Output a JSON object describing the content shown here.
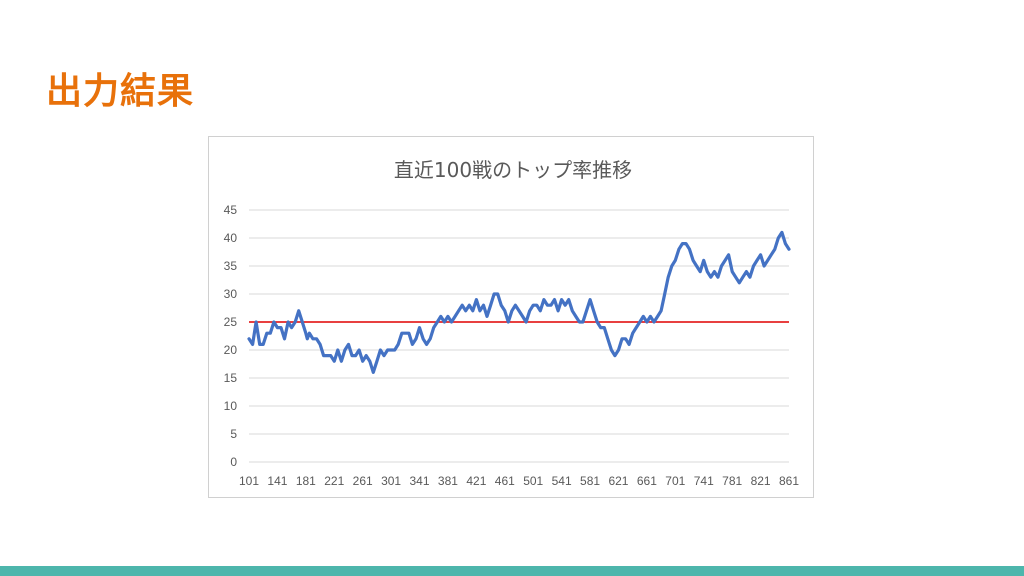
{
  "slide": {
    "title": "出力結果"
  },
  "colors": {
    "title": "#e8710a",
    "series": "#4472c4",
    "reference": "#e00000",
    "grid": "#d9d9d9",
    "footer": "#4db6ac"
  },
  "chart_data": {
    "type": "line",
    "title": "直近100戦のトップ率推移",
    "xlabel": "",
    "ylabel": "",
    "xlim": [
      101,
      861
    ],
    "ylim": [
      0,
      45
    ],
    "grid": true,
    "legend": "none",
    "y_ticks": [
      0,
      5,
      10,
      15,
      20,
      25,
      30,
      35,
      40,
      45
    ],
    "x_ticks": [
      101,
      141,
      181,
      221,
      261,
      301,
      341,
      381,
      421,
      461,
      501,
      541,
      581,
      621,
      661,
      701,
      741,
      781,
      821,
      861
    ],
    "reference_line": {
      "y": 25
    },
    "series": [
      {
        "x": [
          101,
          106,
          111,
          116,
          121,
          126,
          131,
          136,
          141,
          146,
          151,
          156,
          161,
          166,
          171,
          176,
          181,
          183,
          186,
          191,
          196,
          201,
          206,
          211,
          216,
          221,
          226,
          231,
          236,
          241,
          246,
          251,
          256,
          261,
          266,
          271,
          276,
          281,
          286,
          291,
          296,
          301,
          306,
          311,
          316,
          321,
          326,
          331,
          336,
          341,
          346,
          351,
          356,
          361,
          366,
          371,
          376,
          381,
          386,
          391,
          396,
          401,
          406,
          411,
          416,
          421,
          426,
          431,
          436,
          441,
          446,
          451,
          456,
          461,
          466,
          471,
          476,
          481,
          486,
          491,
          496,
          501,
          506,
          511,
          516,
          521,
          526,
          531,
          536,
          541,
          546,
          551,
          556,
          561,
          566,
          571,
          576,
          581,
          586,
          591,
          596,
          601,
          606,
          611,
          616,
          621,
          626,
          631,
          636,
          641,
          646,
          651,
          656,
          661,
          666,
          671,
          676,
          681,
          686,
          691,
          696,
          701,
          706,
          711,
          716,
          721,
          726,
          731,
          736,
          741,
          746,
          751,
          756,
          761,
          766,
          771,
          776,
          781,
          786,
          791,
          796,
          801,
          806,
          811,
          816,
          821,
          826,
          831,
          836,
          841,
          846,
          851,
          856,
          861
        ],
        "values": [
          22,
          21,
          25,
          21,
          21,
          23,
          23,
          25,
          24,
          24,
          22,
          25,
          24,
          25,
          27,
          25,
          23,
          22,
          23,
          22,
          22,
          21,
          19,
          19,
          19,
          18,
          20,
          18,
          20,
          21,
          19,
          19,
          20,
          18,
          19,
          18,
          16,
          18,
          20,
          19,
          20,
          20,
          20,
          21,
          23,
          23,
          23,
          21,
          22,
          24,
          22,
          21,
          22,
          24,
          25,
          26,
          25,
          26,
          25,
          26,
          27,
          28,
          27,
          28,
          27,
          29,
          27,
          28,
          26,
          28,
          30,
          30,
          28,
          27,
          25,
          27,
          28,
          27,
          26,
          25,
          27,
          28,
          28,
          27,
          29,
          28,
          28,
          29,
          27,
          29,
          28,
          29,
          27,
          26,
          25,
          25,
          27,
          29,
          27,
          25,
          24,
          24,
          22,
          20,
          19,
          20,
          22,
          22,
          21,
          23,
          24,
          25,
          26,
          25,
          26,
          25,
          26,
          27,
          30,
          33,
          35,
          36,
          38,
          39,
          39,
          38,
          36,
          35,
          34,
          36,
          34,
          33,
          34,
          33,
          35,
          36,
          37,
          34,
          33,
          32,
          33,
          34,
          33,
          35,
          36,
          37,
          35,
          36,
          37,
          38,
          40,
          41,
          39,
          38
        ]
      }
    ]
  }
}
